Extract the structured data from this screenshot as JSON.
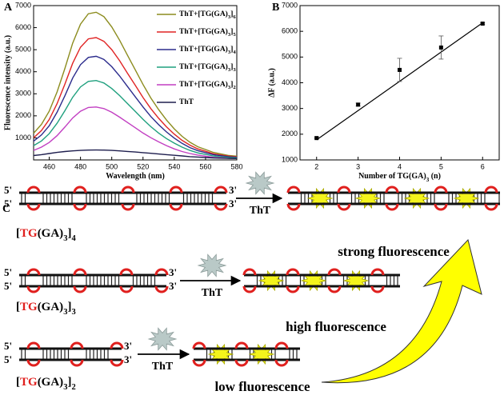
{
  "chart_data": [
    {
      "type": "line",
      "panel": "A",
      "x_label": "Wavelength (nm)",
      "y_label": "Fluorescence intensity (a.u.)",
      "xlim": [
        450,
        580
      ],
      "xticks": [
        460,
        480,
        500,
        520,
        540,
        560,
        580
      ],
      "ylim": [
        0,
        7000
      ],
      "yticks": [
        1000,
        2000,
        3000,
        4000,
        5000,
        6000,
        7000
      ],
      "legend": "upper right",
      "x": [
        450,
        455,
        460,
        465,
        470,
        475,
        480,
        485,
        490,
        495,
        500,
        505,
        510,
        515,
        520,
        525,
        530,
        535,
        540,
        545,
        550,
        555,
        560,
        565,
        570,
        575,
        580
      ],
      "series": [
        {
          "name": "ThT+[TG(GA)3]6",
          "color": "#8c8c1e",
          "values": [
            1210,
            1610,
            2210,
            3080,
            4150,
            5290,
            6160,
            6630,
            6700,
            6500,
            6030,
            5430,
            4760,
            4090,
            3420,
            2810,
            2280,
            1810,
            1410,
            1070,
            800,
            600,
            470,
            340,
            270,
            200,
            170
          ]
        },
        {
          "name": "ThT+[TG(GA)3]5",
          "color": "#e02424",
          "values": [
            1000,
            1330,
            1830,
            2550,
            3440,
            4380,
            5110,
            5490,
            5550,
            5380,
            5000,
            4500,
            3940,
            3390,
            2830,
            2330,
            1890,
            1500,
            1170,
            890,
            670,
            500,
            390,
            280,
            220,
            170,
            140
          ]
        },
        {
          "name": "ThT+[TG(GA)3]4",
          "color": "#2b2b8c",
          "values": [
            850,
            1130,
            1550,
            2160,
            2910,
            3710,
            4320,
            4650,
            4700,
            4560,
            4230,
            3810,
            3340,
            2870,
            2400,
            1970,
            1600,
            1270,
            990,
            750,
            560,
            420,
            330,
            240,
            190,
            140,
            120
          ]
        },
        {
          "name": "ThT+[TG(GA)3]3",
          "color": "#1fa07e",
          "values": [
            650,
            860,
            1190,
            1660,
            2230,
            2840,
            3310,
            3560,
            3600,
            3490,
            3240,
            2920,
            2560,
            2200,
            1840,
            1510,
            1220,
            970,
            760,
            580,
            430,
            320,
            250,
            180,
            140,
            110,
            90
          ]
        },
        {
          "name": "ThT+[TG(GA)3]2",
          "color": "#c23fc2",
          "values": [
            430,
            580,
            790,
            1100,
            1490,
            1900,
            2210,
            2380,
            2400,
            2330,
            2160,
            1940,
            1700,
            1460,
            1220,
            1010,
            820,
            650,
            500,
            380,
            290,
            220,
            170,
            120,
            100,
            70,
            60
          ]
        },
        {
          "name": "ThT",
          "color": "#1e1e4e",
          "values": [
            200,
            240,
            290,
            340,
            380,
            410,
            430,
            445,
            450,
            445,
            430,
            410,
            385,
            360,
            330,
            300,
            270,
            240,
            210,
            180,
            150,
            130,
            110,
            90,
            80,
            70,
            60
          ]
        }
      ]
    },
    {
      "type": "scatter",
      "panel": "B",
      "x_label": "Number of TG(GA)3 (n)",
      "y_label": "ΔF (a.u.)",
      "xlim": [
        1.6,
        6.4
      ],
      "xticks": [
        2,
        3,
        4,
        5,
        6
      ],
      "ylim": [
        1000,
        7000
      ],
      "yticks": [
        1000,
        2000,
        3000,
        4000,
        5000,
        6000,
        7000
      ],
      "x": [
        2,
        3,
        4,
        5,
        6
      ],
      "values": [
        1850,
        3150,
        4500,
        5370,
        6300
      ],
      "errors": [
        30,
        60,
        450,
        450,
        40
      ],
      "color": "#000000",
      "fit": {
        "x": [
          2,
          6
        ],
        "y": [
          1780,
          6330
        ]
      }
    }
  ],
  "diagram": {
    "panel": "C",
    "rows": [
      {
        "label": "[TG(GA)3]4",
        "ends": [
          "5'",
          "5'",
          "3'",
          "3'"
        ],
        "dye": "ThT",
        "result": "strong fluorescence"
      },
      {
        "label": "[TG(GA)3]3",
        "ends": [
          "5'",
          "5'",
          "3'",
          "3'"
        ],
        "dye": "ThT",
        "result": "high fluorescence"
      },
      {
        "label": "[TG(GA)3]2",
        "ends": [
          "5'",
          "5'",
          "3'",
          "3'"
        ],
        "dye": "ThT",
        "result": "low fluorescence"
      }
    ]
  }
}
